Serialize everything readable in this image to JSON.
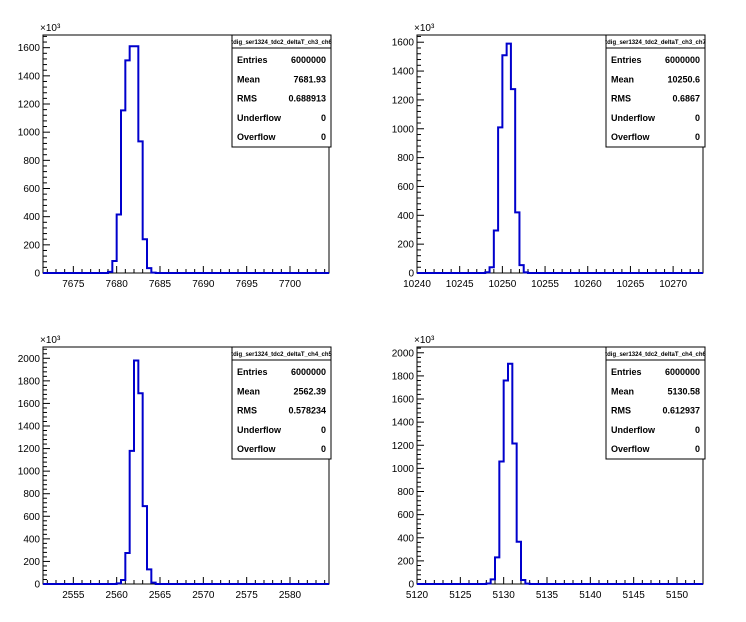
{
  "chart_data": [
    {
      "type": "histogram",
      "title": "tdig_ser1324_tdc2_deltaT_ch3_ch6",
      "y_exponent_label": "×10³",
      "xlim": [
        7671.5,
        7704.5
      ],
      "ylim": [
        0,
        1690
      ],
      "x_ticks": [
        7675,
        7680,
        7685,
        7690,
        7695,
        7700
      ],
      "y_ticks": [
        0,
        200,
        400,
        600,
        800,
        1000,
        1200,
        1400,
        1600
      ],
      "bin_width": 0.5,
      "bins": [
        {
          "x": 7679.0,
          "value": 8
        },
        {
          "x": 7679.5,
          "value": 85
        },
        {
          "x": 7680.0,
          "value": 415
        },
        {
          "x": 7680.5,
          "value": 1155
        },
        {
          "x": 7681.0,
          "value": 1510
        },
        {
          "x": 7681.5,
          "value": 1610
        },
        {
          "x": 7682.0,
          "value": 1610
        },
        {
          "x": 7682.5,
          "value": 935
        },
        {
          "x": 7683.0,
          "value": 240
        },
        {
          "x": 7683.5,
          "value": 35
        },
        {
          "x": 7684.0,
          "value": 3
        }
      ],
      "stats": [
        {
          "label": "Entries",
          "value": "6000000"
        },
        {
          "label": "Mean",
          "value": "7681.93"
        },
        {
          "label": "RMS",
          "value": "0.688913"
        },
        {
          "label": "Underflow",
          "value": "0"
        },
        {
          "label": "Overflow",
          "value": "0"
        }
      ]
    },
    {
      "type": "histogram",
      "title": "tdig_ser1324_tdc2_deltaT_ch3_ch7",
      "y_exponent_label": "×10³",
      "xlim": [
        10240,
        10273.5
      ],
      "ylim": [
        0,
        1650
      ],
      "x_ticks": [
        10240,
        10245,
        10250,
        10255,
        10260,
        10265,
        10270
      ],
      "y_ticks": [
        0,
        200,
        400,
        600,
        800,
        1000,
        1200,
        1400,
        1600
      ],
      "bin_width": 0.5,
      "bins": [
        {
          "x": 10248.0,
          "value": 5
        },
        {
          "x": 10248.5,
          "value": 40
        },
        {
          "x": 10249.0,
          "value": 295
        },
        {
          "x": 10249.5,
          "value": 1010
        },
        {
          "x": 10250.0,
          "value": 1510
        },
        {
          "x": 10250.5,
          "value": 1590
        },
        {
          "x": 10251.0,
          "value": 1275
        },
        {
          "x": 10251.5,
          "value": 420
        },
        {
          "x": 10252.0,
          "value": 55
        },
        {
          "x": 10252.5,
          "value": 4
        }
      ],
      "stats": [
        {
          "label": "Entries",
          "value": "6000000"
        },
        {
          "label": "Mean",
          "value": "10250.6"
        },
        {
          "label": "RMS",
          "value": "0.6867"
        },
        {
          "label": "Underflow",
          "value": "0"
        },
        {
          "label": "Overflow",
          "value": "0"
        }
      ]
    },
    {
      "type": "histogram",
      "title": "tdig_ser1324_tdc2_deltaT_ch4_ch5",
      "y_exponent_label": "×10³",
      "xlim": [
        2551.5,
        2584.5
      ],
      "ylim": [
        0,
        2100
      ],
      "x_ticks": [
        2555,
        2560,
        2565,
        2570,
        2575,
        2580
      ],
      "y_ticks": [
        0,
        200,
        400,
        600,
        800,
        1000,
        1200,
        1400,
        1600,
        1800,
        2000
      ],
      "bin_width": 0.5,
      "bins": [
        {
          "x": 2560.0,
          "value": 5
        },
        {
          "x": 2560.5,
          "value": 35
        },
        {
          "x": 2561.0,
          "value": 275
        },
        {
          "x": 2561.5,
          "value": 1180
        },
        {
          "x": 2562.0,
          "value": 1980
        },
        {
          "x": 2562.5,
          "value": 1690
        },
        {
          "x": 2563.0,
          "value": 690
        },
        {
          "x": 2563.5,
          "value": 130
        },
        {
          "x": 2564.0,
          "value": 12
        }
      ],
      "stats": [
        {
          "label": "Entries",
          "value": "6000000"
        },
        {
          "label": "Mean",
          "value": "2562.39"
        },
        {
          "label": "RMS",
          "value": "0.578234"
        },
        {
          "label": "Underflow",
          "value": "0"
        },
        {
          "label": "Overflow",
          "value": "0"
        }
      ]
    },
    {
      "type": "histogram",
      "title": "tdig_ser1324_tdc2_deltaT_ch4_ch6",
      "y_exponent_label": "×10³",
      "xlim": [
        5120,
        5153
      ],
      "ylim": [
        0,
        2050
      ],
      "x_ticks": [
        5120,
        5125,
        5130,
        5135,
        5140,
        5145,
        5150
      ],
      "y_ticks": [
        0,
        200,
        400,
        600,
        800,
        1000,
        1200,
        1400,
        1600,
        1800,
        2000
      ],
      "bin_width": 0.5,
      "bins": [
        {
          "x": 5128.0,
          "value": 4
        },
        {
          "x": 5128.5,
          "value": 40
        },
        {
          "x": 5129.0,
          "value": 230
        },
        {
          "x": 5129.5,
          "value": 1060
        },
        {
          "x": 5130.0,
          "value": 1760
        },
        {
          "x": 5130.5,
          "value": 1905
        },
        {
          "x": 5131.0,
          "value": 1215
        },
        {
          "x": 5131.5,
          "value": 365
        },
        {
          "x": 5132.0,
          "value": 35
        },
        {
          "x": 5132.5,
          "value": 3
        }
      ],
      "stats": [
        {
          "label": "Entries",
          "value": "6000000"
        },
        {
          "label": "Mean",
          "value": "5130.58"
        },
        {
          "label": "RMS",
          "value": "0.612937"
        },
        {
          "label": "Underflow",
          "value": "0"
        },
        {
          "label": "Overflow",
          "value": "0"
        }
      ]
    }
  ],
  "colors": {
    "histogram_line": "#0000cc",
    "axis": "#000000",
    "background": "#ffffff"
  }
}
